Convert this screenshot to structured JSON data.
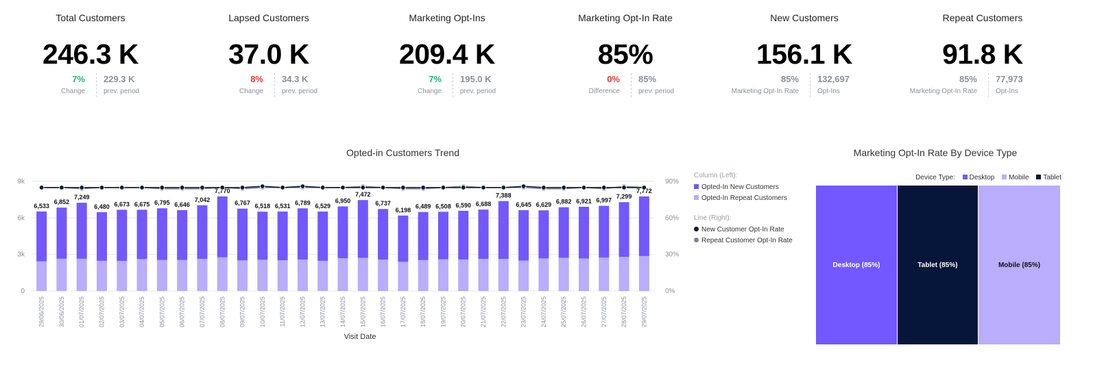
{
  "kpis": [
    {
      "title": "Total Customers",
      "value": "246.3 K",
      "left": {
        "value": "7%",
        "label": "Change",
        "color": "#22b573"
      },
      "right": {
        "value": "229.3 K",
        "label": "prev. period"
      }
    },
    {
      "title": "Lapsed Customers",
      "value": "37.0 K",
      "left": {
        "value": "8%",
        "label": "Change",
        "color": "#e53935"
      },
      "right": {
        "value": "34.3 K",
        "label": "prev. period"
      }
    },
    {
      "title": "Marketing Opt-Ins",
      "value": "209.4 K",
      "left": {
        "value": "7%",
        "label": "Change",
        "color": "#22b573"
      },
      "right": {
        "value": "195.0 K",
        "label": "prev. period"
      }
    },
    {
      "title": "Marketing Opt-In Rate",
      "value": "85%",
      "left": {
        "value": "0%",
        "label": "Difference",
        "color": "#e53935"
      },
      "right": {
        "value": "85%",
        "label": "prev. period"
      }
    },
    {
      "title": "New Customers",
      "value": "156.1 K",
      "left": {
        "value": "85%",
        "label": "Marketing Opt-In Rate",
        "color": "#8a9099"
      },
      "right": {
        "value": "132,697",
        "label": "Opt-Ins"
      }
    },
    {
      "title": "Repeat Customers",
      "value": "91.8 K",
      "left": {
        "value": "85%",
        "label": "Marketing Opt-In Rate",
        "color": "#8a9099"
      },
      "right": {
        "value": "77,973",
        "label": "Opt-Ins"
      }
    }
  ],
  "colors": {
    "new": "#7357ff",
    "repeat": "#b9adfc",
    "new_rate": "#0d1b3a",
    "repeat_rate": "#7b8394",
    "tablet": "#06163a"
  },
  "chart_data": [
    {
      "type": "bar",
      "title": "Opted-in Customers Trend",
      "xlabel": "Visit Date",
      "ylabel_left": "",
      "ylim": [
        0,
        9000
      ],
      "y2lim": [
        0,
        90
      ],
      "y_ticks": [
        "0",
        "3k",
        "6k",
        "9k"
      ],
      "y2_ticks": [
        "0%",
        "30%",
        "60%",
        "90%"
      ],
      "categories": [
        "29/06/2025",
        "30/06/2025",
        "01/07/2025",
        "02/07/2025",
        "03/07/2025",
        "04/07/2025",
        "05/07/2025",
        "06/07/2025",
        "07/07/2025",
        "08/07/2025",
        "09/07/2025",
        "10/07/2025",
        "11/07/2025",
        "12/07/2025",
        "13/07/2025",
        "14/07/2025",
        "15/07/2025",
        "16/07/2025",
        "17/07/2025",
        "18/07/2025",
        "19/07/2025",
        "20/07/2025",
        "21/07/2025",
        "22/07/2025",
        "23/07/2025",
        "24/07/2025",
        "25/07/2025",
        "26/07/2025",
        "27/07/2025",
        "28/07/2025",
        "29/07/2025"
      ],
      "totals": [
        6533,
        6852,
        7249,
        6480,
        6673,
        6675,
        6795,
        6646,
        7042,
        7770,
        6767,
        6518,
        6531,
        6789,
        6529,
        6950,
        7472,
        6737,
        6198,
        6489,
        6508,
        6590,
        6688,
        7388,
        6645,
        6629,
        6882,
        6921,
        6997,
        7299,
        7772
      ],
      "total_labels": [
        "6,533",
        "6,852",
        "7,249",
        "6,480",
        "6,673",
        "6,675",
        "6,795",
        "6,646",
        "7,042",
        "7,770",
        "6,767",
        "6,518",
        "6,531",
        "6,789",
        "6,529",
        "6,950",
        "7,472",
        "6,737",
        "6,198",
        "6,489",
        "6,508",
        "6,590",
        "6,688",
        "7,388",
        "6,645",
        "6,629",
        "6,882",
        "6,921",
        "6,997",
        "7,299",
        "7,772"
      ],
      "series": [
        {
          "name": "Opted-In New Customers",
          "axis": "left",
          "kind": "column",
          "values": [
            4100,
            4200,
            4600,
            4000,
            4200,
            4050,
            4250,
            4100,
            4400,
            5000,
            4250,
            3950,
            4000,
            4200,
            4050,
            4250,
            4750,
            4150,
            3800,
            3950,
            3900,
            4000,
            4050,
            4750,
            4150,
            3950,
            4150,
            4250,
            4250,
            4500,
            4900
          ]
        },
        {
          "name": "Opted-In Repeat Customers",
          "axis": "left",
          "kind": "column",
          "values": [
            2433,
            2652,
            2649,
            2480,
            2473,
            2625,
            2545,
            2546,
            2642,
            2770,
            2517,
            2568,
            2531,
            2589,
            2479,
            2700,
            2722,
            2587,
            2398,
            2539,
            2608,
            2590,
            2638,
            2638,
            2495,
            2679,
            2732,
            2671,
            2747,
            2799,
            2872
          ]
        },
        {
          "name": "New Customer Opt-In Rate",
          "axis": "right",
          "kind": "line",
          "values": [
            85,
            85,
            85,
            85,
            85,
            85,
            85,
            85,
            85,
            85,
            85,
            86,
            85,
            86,
            85,
            85,
            85,
            85,
            85,
            85,
            85,
            85,
            85,
            85,
            86,
            85,
            85,
            85,
            85,
            85,
            85
          ]
        },
        {
          "name": "Repeat Customer Opt-In Rate",
          "axis": "right",
          "kind": "line",
          "values": [
            85,
            85,
            84,
            85,
            85,
            85,
            84,
            84,
            84,
            85,
            84,
            85,
            85,
            85,
            85,
            85,
            86,
            85,
            84,
            84,
            85,
            86,
            85,
            85,
            85,
            84,
            84,
            85,
            84,
            86,
            85
          ]
        }
      ],
      "legend": {
        "column_heading": "Column (Left):",
        "line_heading": "Line (Right):",
        "position": "right"
      },
      "grid": true
    },
    {
      "type": "treemap",
      "title": "Marketing Opt-In Rate By Device Type",
      "legend_heading": "Device Type:",
      "legend": [
        "Desktop",
        "Mobile",
        "Tablet"
      ],
      "cells": [
        {
          "name": "Desktop",
          "label": "Desktop (85%)",
          "value": 85,
          "weight": 1
        },
        {
          "name": "Tablet",
          "label": "Tablet (85%)",
          "value": 85,
          "weight": 1
        },
        {
          "name": "Mobile",
          "label": "Mobile (85%)",
          "value": 85,
          "weight": 1
        }
      ]
    }
  ]
}
